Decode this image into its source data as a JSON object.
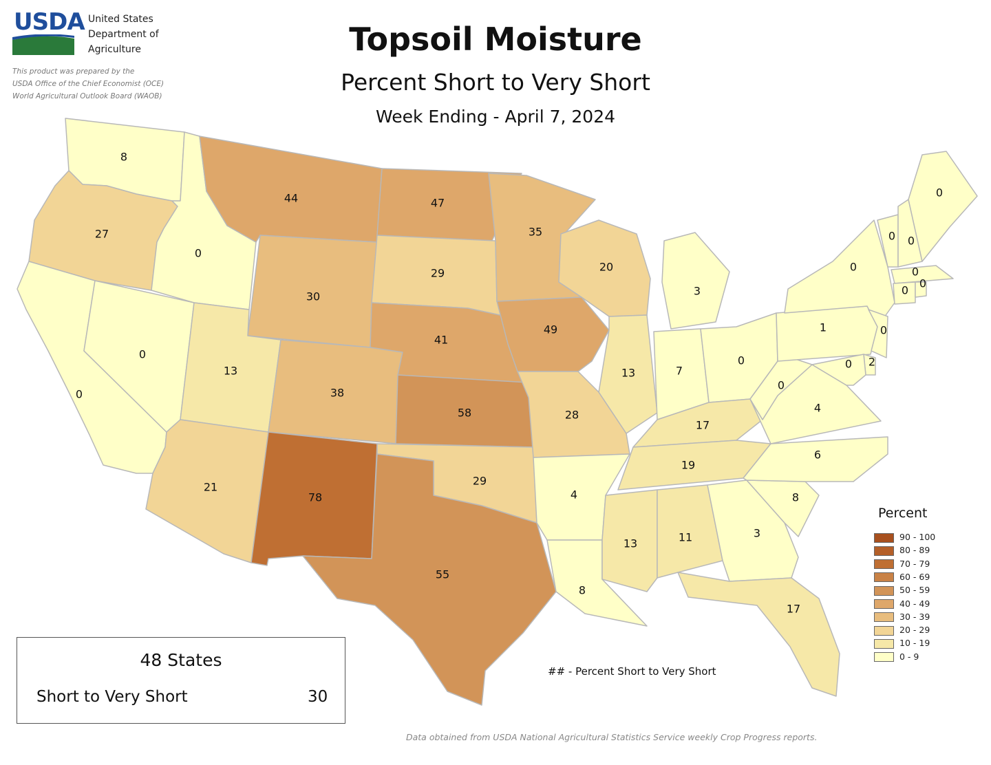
{
  "header": {
    "logo_text": "USDA",
    "dept_lines": [
      "United States",
      "Department of",
      "Agriculture"
    ],
    "prepared_lines": [
      "This product was prepared by the",
      "USDA Office of the Chief Economist (OCE)",
      "World Agricultural Outlook Board (WAOB)"
    ],
    "title": "Topsoil Moisture",
    "subtitle": "Percent Short to Very Short",
    "week": "Week Ending - April 7, 2024"
  },
  "colors": {
    "c0": "#ffffc8",
    "c10": "#f6e8a8",
    "c20": "#f2d596",
    "c30": "#e8bd7e",
    "c40": "#dea76a",
    "c50": "#d29458",
    "c70": "#bf6f33",
    "border": "#b8b8b8"
  },
  "states": [
    {
      "abbr": "WA",
      "value": "8"
    },
    {
      "abbr": "OR",
      "value": "27"
    },
    {
      "abbr": "CA",
      "value": "0"
    },
    {
      "abbr": "NV",
      "value": "0"
    },
    {
      "abbr": "ID",
      "value": "0"
    },
    {
      "abbr": "MT",
      "value": "44"
    },
    {
      "abbr": "WY",
      "value": "30"
    },
    {
      "abbr": "UT",
      "value": "13"
    },
    {
      "abbr": "AZ",
      "value": "21"
    },
    {
      "abbr": "CO",
      "value": "38"
    },
    {
      "abbr": "NM",
      "value": "78"
    },
    {
      "abbr": "ND",
      "value": "47"
    },
    {
      "abbr": "SD",
      "value": "29"
    },
    {
      "abbr": "NE",
      "value": "41"
    },
    {
      "abbr": "KS",
      "value": "58"
    },
    {
      "abbr": "OK",
      "value": "29"
    },
    {
      "abbr": "TX",
      "value": "55"
    },
    {
      "abbr": "MN",
      "value": "35"
    },
    {
      "abbr": "IA",
      "value": "49"
    },
    {
      "abbr": "MO",
      "value": "28"
    },
    {
      "abbr": "AR",
      "value": "4"
    },
    {
      "abbr": "LA",
      "value": "8"
    },
    {
      "abbr": "WI",
      "value": "20"
    },
    {
      "abbr": "IL",
      "value": "13"
    },
    {
      "abbr": "MI",
      "value": "3"
    },
    {
      "abbr": "IN",
      "value": "7"
    },
    {
      "abbr": "OH",
      "value": "0"
    },
    {
      "abbr": "KY",
      "value": "17"
    },
    {
      "abbr": "TN",
      "value": "19"
    },
    {
      "abbr": "MS",
      "value": "13"
    },
    {
      "abbr": "AL",
      "value": "11"
    },
    {
      "abbr": "GA",
      "value": "3"
    },
    {
      "abbr": "FL",
      "value": "17"
    },
    {
      "abbr": "SC",
      "value": "8"
    },
    {
      "abbr": "NC",
      "value": "6"
    },
    {
      "abbr": "VA",
      "value": "4"
    },
    {
      "abbr": "WV",
      "value": "0"
    },
    {
      "abbr": "PA",
      "value": "1"
    },
    {
      "abbr": "NY",
      "value": "0"
    },
    {
      "abbr": "NJ",
      "value": "0"
    },
    {
      "abbr": "DE",
      "value": "2"
    },
    {
      "abbr": "MD",
      "value": "0"
    },
    {
      "abbr": "VT",
      "value": "0"
    },
    {
      "abbr": "NH",
      "value": "0"
    },
    {
      "abbr": "ME",
      "value": "0"
    },
    {
      "abbr": "MA",
      "value": "0"
    },
    {
      "abbr": "CT",
      "value": "0"
    },
    {
      "abbr": "RI",
      "value": "0"
    }
  ],
  "legend": {
    "title": "Percent",
    "items": [
      {
        "label": "90 - 100",
        "color": "#a8501e"
      },
      {
        "label": "80 - 89",
        "color": "#b45f28"
      },
      {
        "label": "70 - 79",
        "color": "#bf6f33"
      },
      {
        "label": "60 - 69",
        "color": "#c98246"
      },
      {
        "label": "50 - 59",
        "color": "#d29458"
      },
      {
        "label": "40 - 49",
        "color": "#dea76a"
      },
      {
        "label": "30 - 39",
        "color": "#e8bd7e"
      },
      {
        "label": "20 - 29",
        "color": "#f2d596"
      },
      {
        "label": "10 - 19",
        "color": "#f6e8a8"
      },
      {
        "label": "0 - 9",
        "color": "#ffffc8"
      }
    ]
  },
  "summary": {
    "heading": "48 States",
    "label": "Short to Very Short",
    "value": "30"
  },
  "note": "## - Percent Short to Very Short",
  "footer": "Data obtained from USDA National Agricultural Statistics Service weekly Crop Progress reports."
}
